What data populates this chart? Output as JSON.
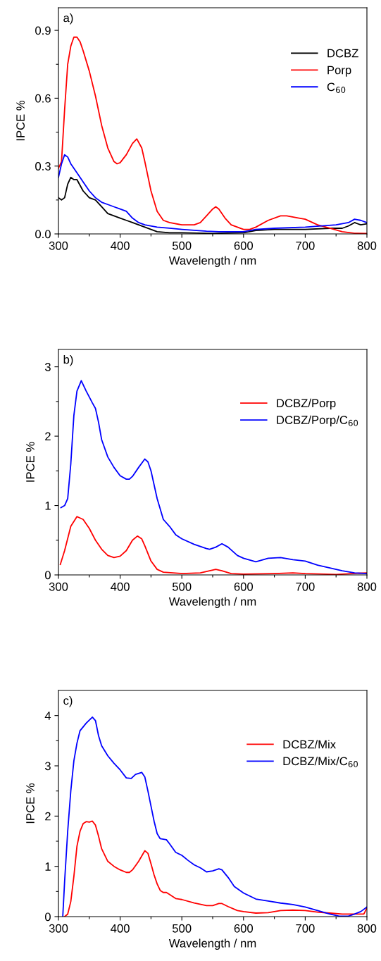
{
  "chart_data": [
    {
      "type": "line",
      "annotations": [
        "a)"
      ],
      "xlabel": "Wavelength / nm",
      "ylabel": "IPCE %",
      "xlim": [
        300,
        800
      ],
      "ylim": [
        0,
        1.0
      ],
      "xticks": [
        300,
        {
          "value": 350,
          "label": null
        },
        400,
        {
          "value": 450,
          "label": null
        },
        500,
        {
          "value": 550,
          "label": null
        },
        600,
        {
          "value": 650,
          "label": null
        },
        700,
        {
          "value": 750,
          "label": null
        },
        800
      ],
      "yticks": [
        {
          "value": 0,
          "label": "0.0"
        },
        {
          "value": 0.15,
          "label": null
        },
        {
          "value": 0.3,
          "label": "0.3"
        },
        {
          "value": 0.45,
          "label": null
        },
        {
          "value": 0.6,
          "label": "0.6"
        },
        {
          "value": 0.75,
          "label": null
        },
        {
          "value": 0.9,
          "label": "0.9"
        }
      ],
      "legend": "right",
      "grid": false,
      "marker": "none",
      "line_style": "solid",
      "series": [
        {
          "name": "DCBZ",
          "color": "#000000",
          "x": [
            300,
            305,
            310,
            315,
            320,
            325,
            330,
            340,
            350,
            360,
            370,
            380,
            390,
            400,
            410,
            420,
            430,
            440,
            450,
            460,
            480,
            500,
            550,
            600,
            620,
            650,
            700,
            740,
            760,
            770,
            780,
            790,
            800
          ],
          "values": [
            0.16,
            0.15,
            0.16,
            0.22,
            0.25,
            0.24,
            0.24,
            0.19,
            0.16,
            0.15,
            0.12,
            0.09,
            0.08,
            0.07,
            0.06,
            0.05,
            0.04,
            0.03,
            0.02,
            0.01,
            0.005,
            0.005,
            0.002,
            0.005,
            0.015,
            0.02,
            0.02,
            0.025,
            0.025,
            0.035,
            0.05,
            0.04,
            0.045
          ]
        },
        {
          "name": "Porp",
          "color": "#ff0000",
          "x": [
            300,
            305,
            310,
            315,
            320,
            325,
            330,
            335,
            340,
            350,
            360,
            370,
            380,
            390,
            395,
            400,
            410,
            420,
            427,
            435,
            440,
            450,
            460,
            470,
            480,
            500,
            520,
            530,
            540,
            550,
            555,
            560,
            570,
            580,
            590,
            600,
            610,
            620,
            640,
            660,
            670,
            690,
            700,
            720,
            740,
            760,
            780,
            800
          ],
          "values": [
            0.29,
            0.32,
            0.55,
            0.75,
            0.83,
            0.87,
            0.87,
            0.85,
            0.81,
            0.72,
            0.61,
            0.48,
            0.38,
            0.32,
            0.31,
            0.315,
            0.35,
            0.4,
            0.42,
            0.38,
            0.32,
            0.19,
            0.1,
            0.06,
            0.05,
            0.04,
            0.04,
            0.05,
            0.08,
            0.11,
            0.12,
            0.11,
            0.07,
            0.04,
            0.03,
            0.02,
            0.02,
            0.03,
            0.06,
            0.08,
            0.08,
            0.07,
            0.065,
            0.04,
            0.025,
            0.01,
            0.003,
            0.002
          ]
        },
        {
          "name": "C$_{60}$",
          "color": "#0000ff",
          "x": [
            300,
            305,
            310,
            315,
            320,
            330,
            340,
            350,
            360,
            370,
            380,
            390,
            400,
            410,
            420,
            430,
            440,
            460,
            480,
            500,
            540,
            560,
            600,
            620,
            650,
            700,
            750,
            770,
            780,
            790,
            800
          ],
          "values": [
            0.25,
            0.31,
            0.35,
            0.34,
            0.31,
            0.27,
            0.23,
            0.19,
            0.16,
            0.14,
            0.13,
            0.12,
            0.11,
            0.1,
            0.07,
            0.05,
            0.04,
            0.03,
            0.025,
            0.02,
            0.012,
            0.01,
            0.01,
            0.02,
            0.025,
            0.03,
            0.04,
            0.05,
            0.065,
            0.06,
            0.05
          ]
        }
      ]
    },
    {
      "type": "line",
      "annotations": [
        "b)"
      ],
      "xlabel": "Wavelength / nm",
      "ylabel": "IPCE %",
      "xlim": [
        300,
        800
      ],
      "ylim": [
        0,
        3.25
      ],
      "xticks": [
        300,
        {
          "value": 350,
          "label": null
        },
        400,
        {
          "value": 450,
          "label": null
        },
        500,
        {
          "value": 550,
          "label": null
        },
        600,
        {
          "value": 650,
          "label": null
        },
        700,
        {
          "value": 750,
          "label": null
        },
        800
      ],
      "yticks": [
        0,
        {
          "value": 0.5,
          "label": null
        },
        1,
        {
          "value": 1.5,
          "label": null
        },
        2,
        {
          "value": 2.5,
          "label": null
        },
        3
      ],
      "legend": "right",
      "grid": false,
      "marker": "none",
      "line_style": "solid",
      "series": [
        {
          "name": "DCBZ/Porp",
          "color": "#ff0000",
          "x": [
            303,
            310,
            320,
            330,
            340,
            350,
            360,
            370,
            380,
            390,
            400,
            410,
            420,
            428,
            435,
            440,
            450,
            460,
            470,
            500,
            530,
            545,
            555,
            565,
            580,
            600,
            650,
            680,
            700,
            750,
            800
          ],
          "values": [
            0.15,
            0.35,
            0.7,
            0.84,
            0.8,
            0.67,
            0.5,
            0.37,
            0.28,
            0.25,
            0.27,
            0.35,
            0.5,
            0.56,
            0.52,
            0.42,
            0.2,
            0.08,
            0.04,
            0.02,
            0.03,
            0.06,
            0.08,
            0.06,
            0.02,
            0.01,
            0.02,
            0.03,
            0.02,
            0.005,
            0.03
          ]
        },
        {
          "name": "DCBZ/Porp/C$_{60}$",
          "color": "#0000ff",
          "x": [
            304,
            310,
            315,
            320,
            325,
            330,
            337,
            345,
            355,
            360,
            365,
            370,
            380,
            390,
            400,
            410,
            415,
            420,
            430,
            440,
            445,
            450,
            460,
            470,
            480,
            490,
            500,
            520,
            540,
            545,
            555,
            565,
            575,
            590,
            600,
            620,
            640,
            660,
            680,
            700,
            720,
            740,
            760,
            780,
            800
          ],
          "values": [
            0.97,
            1.0,
            1.1,
            1.6,
            2.3,
            2.65,
            2.8,
            2.65,
            2.48,
            2.4,
            2.2,
            1.95,
            1.7,
            1.55,
            1.43,
            1.38,
            1.38,
            1.42,
            1.55,
            1.67,
            1.63,
            1.5,
            1.1,
            0.8,
            0.7,
            0.58,
            0.52,
            0.44,
            0.38,
            0.37,
            0.4,
            0.45,
            0.4,
            0.28,
            0.24,
            0.19,
            0.24,
            0.25,
            0.22,
            0.2,
            0.14,
            0.1,
            0.06,
            0.03,
            0.02
          ]
        }
      ]
    },
    {
      "type": "line",
      "annotations": [
        "c)"
      ],
      "xlabel": "Wavelength / nm",
      "ylabel": "IPCE %",
      "xlim": [
        300,
        800
      ],
      "ylim": [
        0,
        4.5
      ],
      "xticks": [
        300,
        {
          "value": 350,
          "label": null
        },
        400,
        {
          "value": 450,
          "label": null
        },
        500,
        {
          "value": 550,
          "label": null
        },
        600,
        {
          "value": 650,
          "label": null
        },
        700,
        {
          "value": 750,
          "label": null
        },
        800
      ],
      "yticks": [
        0,
        {
          "value": 0.5,
          "label": null
        },
        1,
        {
          "value": 1.5,
          "label": null
        },
        2,
        {
          "value": 2.5,
          "label": null
        },
        3,
        {
          "value": 3.5,
          "label": null
        },
        4
      ],
      "legend": "right",
      "grid": false,
      "marker": "none",
      "line_style": "solid",
      "series": [
        {
          "name": "DCBZ/Mix",
          "color": "#ff0000",
          "x": [
            310,
            315,
            320,
            325,
            330,
            335,
            340,
            345,
            350,
            355,
            360,
            365,
            370,
            380,
            390,
            400,
            410,
            415,
            420,
            430,
            440,
            445,
            450,
            455,
            460,
            465,
            470,
            475,
            480,
            490,
            500,
            520,
            540,
            550,
            560,
            565,
            575,
            590,
            600,
            620,
            640,
            660,
            680,
            700,
            720,
            740,
            760,
            780,
            795,
            800
          ],
          "values": [
            0.0,
            0.05,
            0.3,
            0.8,
            1.4,
            1.7,
            1.85,
            1.89,
            1.88,
            1.9,
            1.82,
            1.6,
            1.35,
            1.1,
            1.0,
            0.93,
            0.88,
            0.88,
            0.93,
            1.1,
            1.31,
            1.26,
            1.05,
            0.83,
            0.65,
            0.52,
            0.48,
            0.48,
            0.44,
            0.36,
            0.34,
            0.27,
            0.22,
            0.22,
            0.26,
            0.26,
            0.2,
            0.12,
            0.1,
            0.07,
            0.08,
            0.12,
            0.13,
            0.12,
            0.09,
            0.07,
            0.05,
            0.05,
            0.05,
            0.17
          ]
        },
        {
          "name": "DCBZ/Mix/C$_{60}$",
          "color": "#0000ff",
          "x": [
            307,
            310,
            315,
            320,
            325,
            330,
            335,
            345,
            355,
            360,
            365,
            370,
            380,
            390,
            400,
            410,
            418,
            425,
            435,
            440,
            445,
            450,
            455,
            460,
            465,
            475,
            480,
            490,
            500,
            510,
            520,
            530,
            540,
            550,
            560,
            565,
            575,
            585,
            600,
            620,
            640,
            660,
            680,
            700,
            720,
            740,
            755,
            770,
            780,
            790,
            800
          ],
          "values": [
            0,
            0.7,
            1.7,
            2.5,
            3.1,
            3.45,
            3.7,
            3.85,
            3.97,
            3.9,
            3.6,
            3.4,
            3.2,
            3.05,
            2.92,
            2.76,
            2.75,
            2.83,
            2.87,
            2.78,
            2.5,
            2.2,
            1.9,
            1.65,
            1.55,
            1.53,
            1.45,
            1.28,
            1.22,
            1.12,
            1.03,
            0.97,
            0.89,
            0.91,
            0.95,
            0.93,
            0.78,
            0.6,
            0.47,
            0.35,
            0.31,
            0.27,
            0.24,
            0.19,
            0.12,
            0.05,
            0.01,
            0.01,
            0.05,
            0.1,
            0.19
          ]
        }
      ]
    }
  ]
}
